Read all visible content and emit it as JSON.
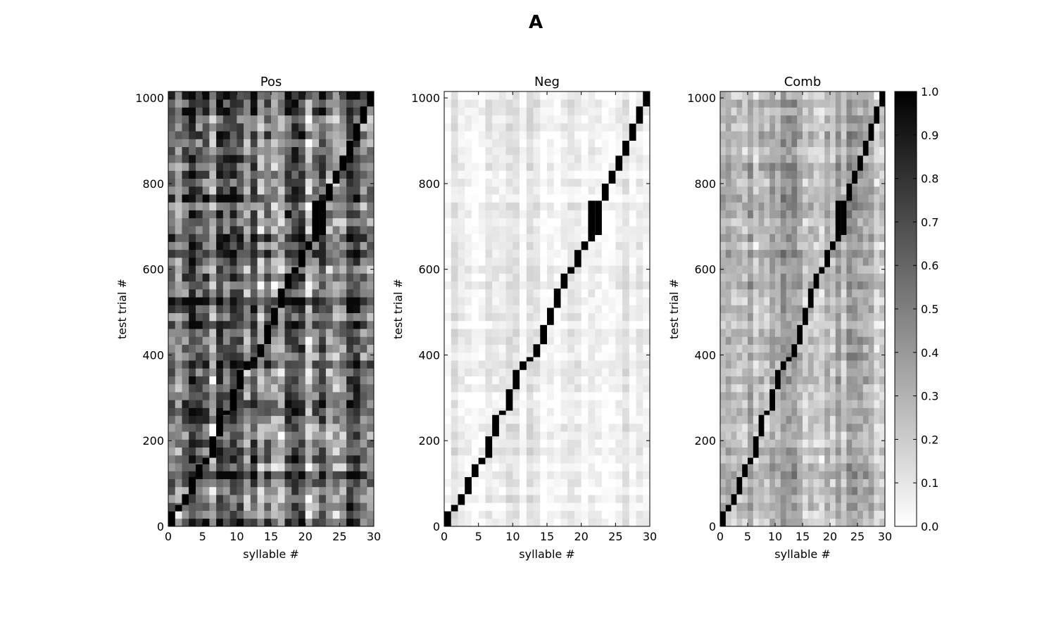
{
  "figure": {
    "title": "A"
  },
  "chart_data": [
    {
      "type": "heatmap",
      "title": "Pos",
      "xlabel": "syllable #",
      "ylabel": "test trial #",
      "xlim": [
        0,
        30
      ],
      "ylim": [
        0,
        1015
      ],
      "xticks": [
        0,
        5,
        10,
        15,
        20,
        25,
        30
      ],
      "yticks": [
        0,
        200,
        400,
        600,
        800,
        1000
      ],
      "grid": false,
      "background_level": 0.55,
      "background_contrast": 0.45
    },
    {
      "type": "heatmap",
      "title": "Neg",
      "xlabel": "syllable #",
      "ylabel": "test trial #",
      "xlim": [
        0,
        30
      ],
      "ylim": [
        0,
        1015
      ],
      "xticks": [
        0,
        5,
        10,
        15,
        20,
        25,
        30
      ],
      "yticks": [
        0,
        200,
        400,
        600,
        800,
        1000
      ],
      "grid": false,
      "background_level": 0.06,
      "background_contrast": 0.1
    },
    {
      "type": "heatmap",
      "title": "Comb",
      "xlabel": "syllable #",
      "ylabel": "test trial #",
      "xlim": [
        0,
        30
      ],
      "ylim": [
        0,
        1015
      ],
      "xticks": [
        0,
        5,
        10,
        15,
        20,
        25,
        30
      ],
      "yticks": [
        0,
        200,
        400,
        600,
        800,
        1000
      ],
      "grid": false,
      "background_level": 0.3,
      "background_contrast": 0.2
    }
  ],
  "diagonal_blocks": [
    {
      "syllable": 0,
      "trials": [
        0,
        35
      ]
    },
    {
      "syllable": 1,
      "trials": [
        35,
        50
      ]
    },
    {
      "syllable": 2,
      "trials": [
        50,
        75
      ]
    },
    {
      "syllable": 3,
      "trials": [
        75,
        115
      ]
    },
    {
      "syllable": 4,
      "trials": [
        115,
        145
      ]
    },
    {
      "syllable": 5,
      "trials": [
        145,
        160
      ]
    },
    {
      "syllable": 6,
      "trials": [
        160,
        210
      ]
    },
    {
      "syllable": 7,
      "trials": [
        210,
        260
      ]
    },
    {
      "syllable": 8,
      "trials": [
        260,
        270
      ]
    },
    {
      "syllable": 9,
      "trials": [
        270,
        320
      ]
    },
    {
      "syllable": 10,
      "trials": [
        320,
        365
      ]
    },
    {
      "syllable": 11,
      "trials": [
        365,
        385
      ]
    },
    {
      "syllable": 12,
      "trials": [
        385,
        395
      ]
    },
    {
      "syllable": 13,
      "trials": [
        395,
        425
      ]
    },
    {
      "syllable": 14,
      "trials": [
        425,
        470
      ]
    },
    {
      "syllable": 15,
      "trials": [
        470,
        510
      ]
    },
    {
      "syllable": 16,
      "trials": [
        510,
        555
      ]
    },
    {
      "syllable": 17,
      "trials": [
        555,
        590
      ]
    },
    {
      "syllable": 18,
      "trials": [
        590,
        605
      ]
    },
    {
      "syllable": 19,
      "trials": [
        605,
        645
      ]
    },
    {
      "syllable": 20,
      "trials": [
        645,
        665
      ]
    },
    {
      "syllable": 21,
      "trials": [
        665,
        760
      ]
    },
    {
      "syllable": 22,
      "trials": [
        680,
        760
      ]
    },
    {
      "syllable": 23,
      "trials": [
        760,
        800
      ]
    },
    {
      "syllable": 24,
      "trials": [
        800,
        830
      ]
    },
    {
      "syllable": 25,
      "trials": [
        830,
        865
      ]
    },
    {
      "syllable": 26,
      "trials": [
        865,
        900
      ]
    },
    {
      "syllable": 27,
      "trials": [
        900,
        940
      ]
    },
    {
      "syllable": 28,
      "trials": [
        940,
        980
      ]
    },
    {
      "syllable": 29,
      "trials": [
        980,
        1015
      ]
    }
  ],
  "colorbar": {
    "colormap": "Greys",
    "range": [
      0.0,
      1.0
    ],
    "ticks": [
      "0.0",
      "0.1",
      "0.2",
      "0.3",
      "0.4",
      "0.5",
      "0.6",
      "0.7",
      "0.8",
      "0.9",
      "1.0"
    ]
  }
}
